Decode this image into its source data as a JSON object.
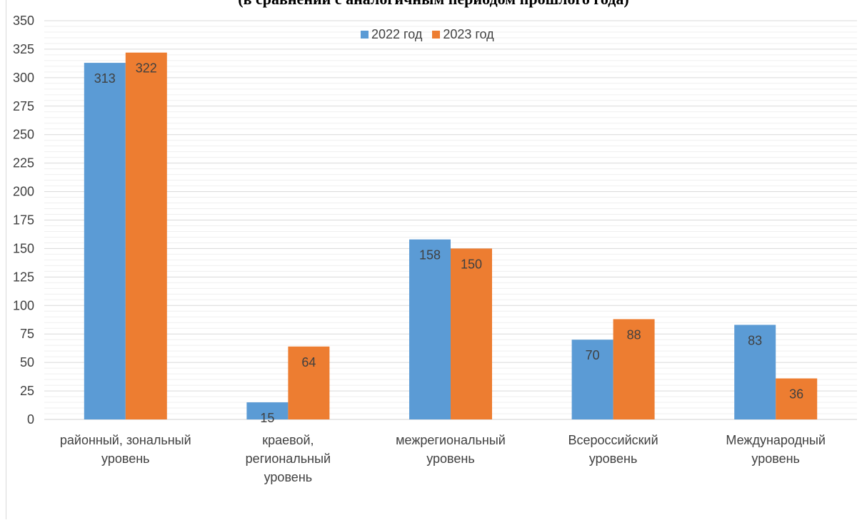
{
  "title": "(в сравнении с аналогичным периодом прошлого года)",
  "chart_data": {
    "type": "bar",
    "title": "(в сравнении с аналогичным периодом прошлого года)",
    "categories": [
      "районный, зональный уровень",
      "краевой, региональный уровень",
      "межрегиональный уровень",
      "Всероссийский уровень",
      "Международный уровень"
    ],
    "category_lines": [
      [
        "районный, зональный",
        "уровень"
      ],
      [
        "краевой,",
        "региональный",
        "уровень"
      ],
      [
        "межрегиональный",
        "уровень"
      ],
      [
        "Всероссийский",
        "уровень"
      ],
      [
        "Международный",
        "уровень"
      ]
    ],
    "series": [
      {
        "name": "2022 год",
        "values": [
          313,
          15,
          158,
          70,
          83
        ],
        "color": "#5b9bd5"
      },
      {
        "name": "2023 год",
        "values": [
          322,
          64,
          150,
          88,
          36
        ],
        "color": "#ed7d31"
      }
    ],
    "ylim": [
      0,
      350
    ],
    "yticks": [
      0,
      25,
      50,
      75,
      100,
      125,
      150,
      175,
      200,
      225,
      250,
      275,
      300,
      325,
      350
    ],
    "xlabel": "",
    "ylabel": "",
    "legend": "top-center",
    "grid": true
  }
}
